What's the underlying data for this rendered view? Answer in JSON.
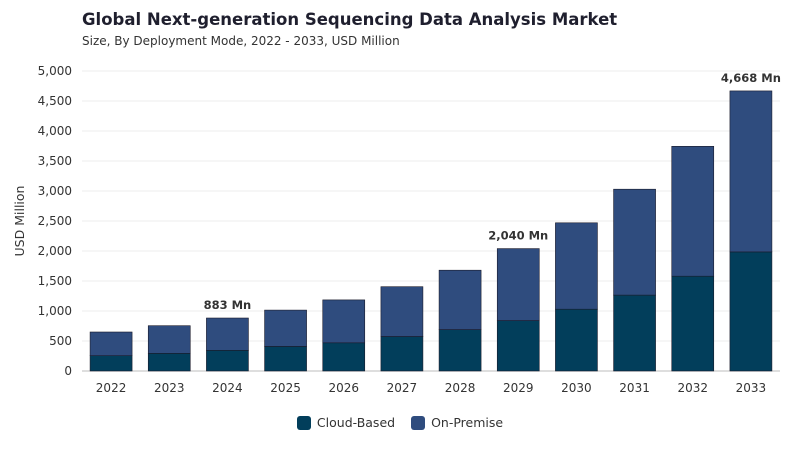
{
  "header": {
    "title": "Global Next-generation Sequencing Data Analysis Market",
    "subtitle": "Size, By Deployment Mode, 2022 - 2033, USD Million"
  },
  "colors": {
    "cloud": "#023e5b",
    "onprem": "#2f4c7e",
    "grid": "#ececec",
    "axis": "#bdbdbd"
  },
  "chart_data": {
    "type": "bar",
    "stacked": true,
    "title": "Global Next-generation Sequencing Data Analysis Market",
    "subtitle": "Size, By Deployment Mode, 2022 - 2033, USD Million",
    "xlabel": "",
    "ylabel": "USD Million",
    "ylim": [
      0,
      5000
    ],
    "yticks": [
      0,
      500,
      1000,
      1500,
      2000,
      2500,
      3000,
      3500,
      4000,
      4500,
      5000
    ],
    "grid": true,
    "legend_position": "bottom",
    "categories": [
      "2022",
      "2023",
      "2024",
      "2025",
      "2026",
      "2027",
      "2028",
      "2029",
      "2030",
      "2031",
      "2032",
      "2033"
    ],
    "series": [
      {
        "name": "Cloud-Based",
        "values": [
          255,
          295,
          345,
          410,
          470,
          575,
          690,
          840,
          1030,
          1265,
          1580,
          1985
        ]
      },
      {
        "name": "On-Premise",
        "values": [
          395,
          460,
          538,
          605,
          715,
          830,
          990,
          1200,
          1440,
          1765,
          2165,
          2683
        ]
      }
    ],
    "annotations": [
      {
        "category": "2024",
        "text": "883 Mn"
      },
      {
        "category": "2029",
        "text": "2,040 Mn"
      },
      {
        "category": "2033",
        "text": "4,668 Mn"
      }
    ]
  }
}
